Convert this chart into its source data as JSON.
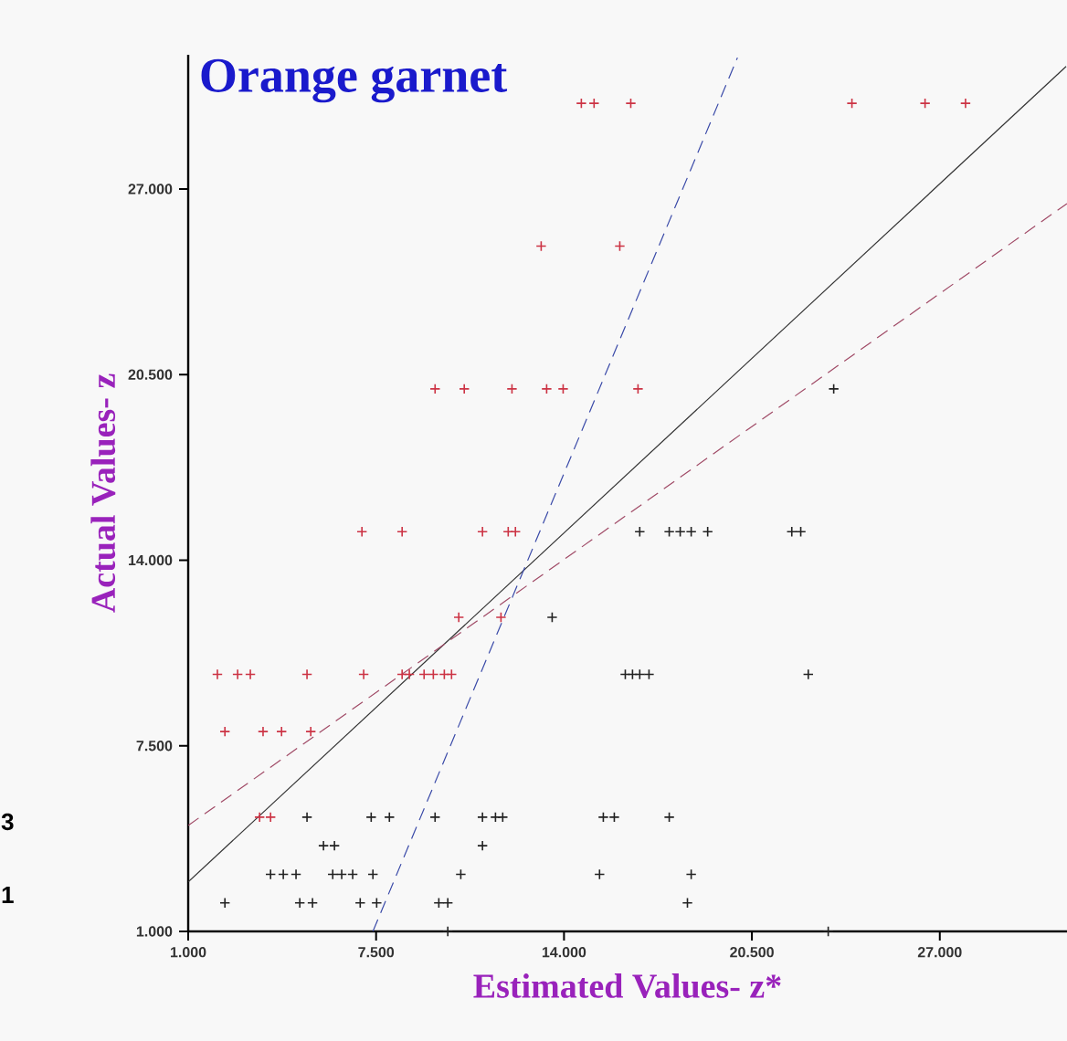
{
  "chart_data": {
    "type": "scatter",
    "title": "Orange garnet",
    "xlabel": "Estimated Values- z*",
    "ylabel": "Actual Values- z",
    "xlim": [
      1,
      31.4
    ],
    "ylim": [
      1,
      31.7
    ],
    "xticks": [
      {
        "value": 1,
        "label": "1.000"
      },
      {
        "value": 7.5,
        "label": "7.500"
      },
      {
        "value": 14,
        "label": "14.000"
      },
      {
        "value": 20.5,
        "label": "20.500"
      },
      {
        "value": 27,
        "label": "27.000"
      }
    ],
    "yticks": [
      {
        "value": 1,
        "label": "1.000"
      },
      {
        "value": 7.5,
        "label": "7.500"
      },
      {
        "value": 14,
        "label": "14.000"
      },
      {
        "value": 20.5,
        "label": "20.500"
      },
      {
        "value": 27,
        "label": "27.000"
      }
    ],
    "marker": "cross",
    "grid": false,
    "annotations": [
      "3",
      "1"
    ],
    "series": [
      {
        "color": "#cc3344",
        "x": [
          14.6,
          15.04,
          16.31,
          23.96,
          26.49,
          27.89,
          13.21,
          15.93,
          9.54,
          10.55,
          12.2,
          13.4,
          13.97,
          16.56,
          7.01,
          8.4,
          11.18,
          12.07,
          12.32,
          10.36,
          11.82,
          2.01,
          2.71,
          3.15,
          5.11,
          7.07,
          8.4,
          8.65,
          9.16,
          9.48,
          9.86,
          10.11,
          2.27,
          3.59,
          4.23,
          5.24,
          3.47,
          3.85
        ],
        "values": [
          30,
          30,
          30,
          30,
          30,
          30,
          25,
          25,
          20,
          20,
          20,
          20,
          20,
          20,
          15,
          15,
          15,
          15,
          15,
          12,
          12,
          10,
          10,
          10,
          10,
          10,
          10,
          10,
          10,
          10,
          10,
          10,
          8,
          8,
          8,
          8,
          5,
          5
        ]
      },
      {
        "color": "#222222",
        "x": [
          23.33,
          16.62,
          17.64,
          18.02,
          18.4,
          18.97,
          21.88,
          22.19,
          13.59,
          16.12,
          16.37,
          16.62,
          16.94,
          22.45,
          5.11,
          7.33,
          7.96,
          9.54,
          11.18,
          11.63,
          11.88,
          15.36,
          15.74,
          17.64,
          5.68,
          6.06,
          11.18,
          3.85,
          4.29,
          4.73,
          6.0,
          6.31,
          6.69,
          7.39,
          10.43,
          15.23,
          18.4,
          2.27,
          4.86,
          5.3,
          6.95,
          7.52,
          9.67,
          9.98,
          18.27,
          9.98,
          23.14
        ],
        "values": [
          20,
          15,
          15,
          15,
          15,
          15,
          15,
          15,
          12,
          10,
          10,
          10,
          10,
          10,
          5,
          5,
          5,
          5,
          5,
          5,
          5,
          5,
          5,
          5,
          4,
          4,
          4,
          3,
          3,
          3,
          3,
          3,
          3,
          3,
          3,
          3,
          3,
          2,
          2,
          2,
          2,
          2,
          2,
          2,
          2,
          1,
          1
        ]
      },
      {
        "type": "line",
        "marker": "none",
        "color": "#333333",
        "line_style": "solid",
        "x": [
          1,
          31.37
        ],
        "values": [
          2.73,
          31.29
        ]
      },
      {
        "type": "line",
        "marker": "none",
        "color": "#a04a66",
        "line_style": "dashed",
        "x": [
          1,
          31.4
        ],
        "values": [
          4.71,
          26.49
        ]
      },
      {
        "type": "line",
        "marker": "none",
        "color": "#3a4aa8",
        "line_style": "dashed",
        "x": [
          7.39,
          20.0
        ],
        "values": [
          1,
          31.6
        ]
      }
    ]
  }
}
